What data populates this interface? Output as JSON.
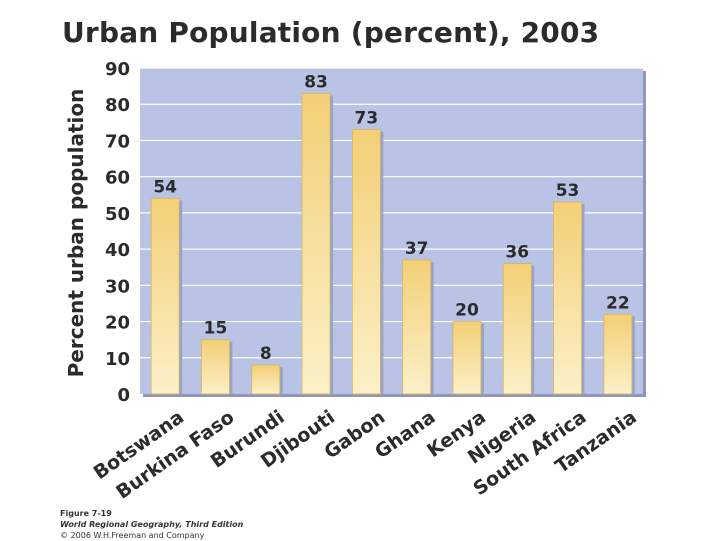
{
  "chart_data": {
    "type": "bar",
    "title": "Urban Population (percent), 2003",
    "ylabel": "Percent urban population",
    "xlabel": "",
    "ylim": [
      0,
      90
    ],
    "yticks": [
      0,
      10,
      20,
      30,
      40,
      50,
      60,
      70,
      80,
      90
    ],
    "categories": [
      "Botswana",
      "Burkina Faso",
      "Burundi",
      "Djibouti",
      "Gabon",
      "Ghana",
      "Kenya",
      "Nigeria",
      "South Africa",
      "Tanzania"
    ],
    "values": [
      54,
      15,
      8,
      83,
      73,
      37,
      20,
      36,
      53,
      22
    ],
    "grid": true
  },
  "colors": {
    "plot_bg": "#b8c3e6",
    "grid": "#ffffff",
    "bar_top": "#f3cf76",
    "bar_bottom": "#fbf0c8",
    "text": "#2b2b2b"
  },
  "caption": {
    "figure": "Figure 7-19",
    "book": "World Regional Geography, Third Edition",
    "copyright": "© 2006 W.H.Freeman and Company"
  }
}
